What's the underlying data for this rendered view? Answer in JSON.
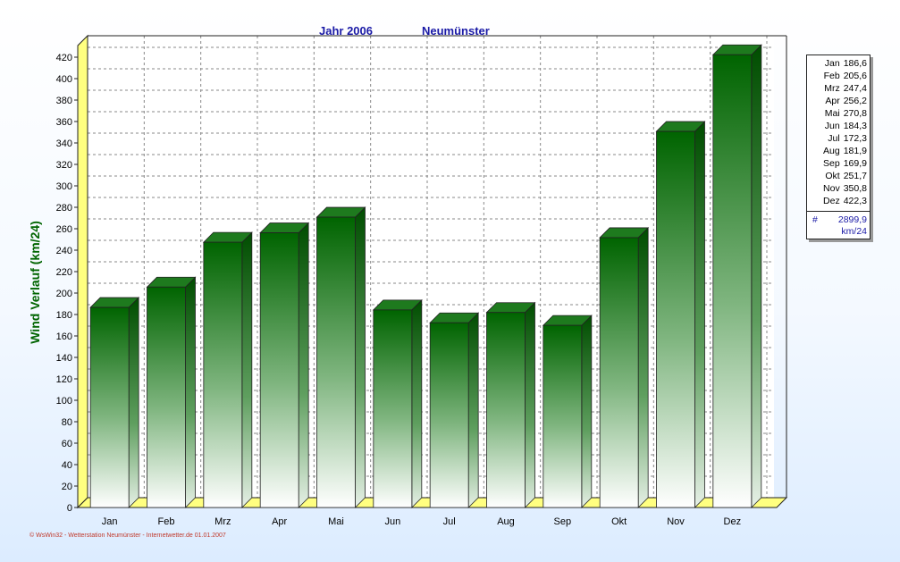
{
  "title": {
    "jahr": "Jahr  2006",
    "station": "Neumünster"
  },
  "footer": "© WsWin32  -  Wetterstation Neumünster  -  Internetwetter.de  01.01.2007",
  "legend": {
    "rows": [
      {
        "month": "Jan",
        "value": "186,6"
      },
      {
        "month": "Feb",
        "value": "205,6"
      },
      {
        "month": "Mrz",
        "value": "247,4"
      },
      {
        "month": "Apr",
        "value": "256,2"
      },
      {
        "month": "Mai",
        "value": "270,8"
      },
      {
        "month": "Jun",
        "value": "184,3"
      },
      {
        "month": "Jul",
        "value": "172,3"
      },
      {
        "month": "Aug",
        "value": "181,9"
      },
      {
        "month": "Sep",
        "value": "169,9"
      },
      {
        "month": "Okt",
        "value": "251,7"
      },
      {
        "month": "Nov",
        "value": "350,8"
      },
      {
        "month": "Dez",
        "value": "422,3"
      }
    ],
    "total_symbol": "#",
    "total_value": "2899,9",
    "unit": "km/24"
  },
  "chart_data": {
    "type": "bar",
    "categories": [
      "Jan",
      "Feb",
      "Mrz",
      "Apr",
      "Mai",
      "Jun",
      "Jul",
      "Aug",
      "Sep",
      "Okt",
      "Nov",
      "Dez"
    ],
    "values": [
      186.6,
      205.6,
      247.4,
      256.2,
      270.8,
      184.3,
      172.3,
      181.9,
      169.9,
      251.7,
      350.8,
      422.3
    ],
    "ylabel": "Wind Verlauf  (km/24)",
    "ylim": [
      0,
      420
    ],
    "ytick_step": 20,
    "grid": true,
    "legend_position": "right",
    "colors": {
      "bar_top": "#006400",
      "bar_bottom": "#ffffff",
      "wall": "#ffff80",
      "ylabel": "#006400",
      "title": "#1a1aa6"
    }
  }
}
